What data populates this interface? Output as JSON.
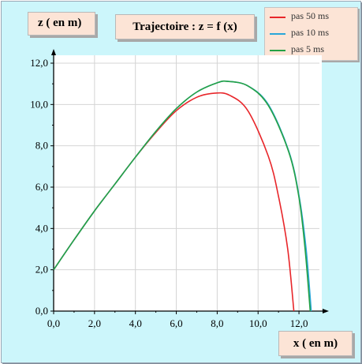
{
  "chart_data": {
    "type": "line",
    "title": "Trajectoire : z = f (x)",
    "xlabel": "x ( en m)",
    "ylabel": "z ( en m)",
    "xlim": [
      0,
      13
    ],
    "ylim": [
      0,
      12
    ],
    "x_ticks": [
      "0,0",
      "2,0",
      "4,0",
      "6,0",
      "8,0",
      "10,0",
      "12,0"
    ],
    "y_ticks": [
      "0,0",
      "2,0",
      "4,0",
      "6,0",
      "8,0",
      "10,0",
      "12,0"
    ],
    "grid": true,
    "legend_position": "top-right",
    "series": [
      {
        "name": "pas 50 ms",
        "color": "#e8262a",
        "x": [
          0,
          1,
          2,
          3,
          4,
          5,
          6,
          7,
          7.9,
          8.6,
          9.5,
          10.5,
          11.0,
          11.45,
          11.75
        ],
        "y": [
          2.0,
          3.45,
          4.85,
          6.15,
          7.45,
          8.65,
          9.7,
          10.35,
          10.55,
          10.45,
          9.7,
          7.5,
          5.55,
          3.0,
          0.0
        ]
      },
      {
        "name": "pas 10 ms",
        "color": "#29a6d9",
        "x": [
          0,
          1,
          2,
          3,
          4,
          5,
          6,
          7,
          8,
          8.55,
          9.5,
          10.5,
          11.5,
          12.0,
          12.35,
          12.6
        ],
        "y": [
          2.0,
          3.45,
          4.85,
          6.15,
          7.45,
          8.7,
          9.8,
          10.6,
          11.05,
          11.12,
          10.9,
          10.0,
          7.75,
          5.6,
          3.0,
          0.0
        ]
      },
      {
        "name": "pas 5 ms",
        "color": "#25a145",
        "x": [
          0,
          1,
          2,
          3,
          4,
          5,
          6,
          7,
          8,
          8.5,
          9.5,
          10.5,
          11.5,
          12.0,
          12.3,
          12.55
        ],
        "y": [
          2.0,
          3.45,
          4.85,
          6.15,
          7.45,
          8.7,
          9.8,
          10.6,
          11.05,
          11.12,
          10.9,
          9.95,
          7.7,
          5.5,
          3.0,
          0.0
        ]
      }
    ]
  }
}
